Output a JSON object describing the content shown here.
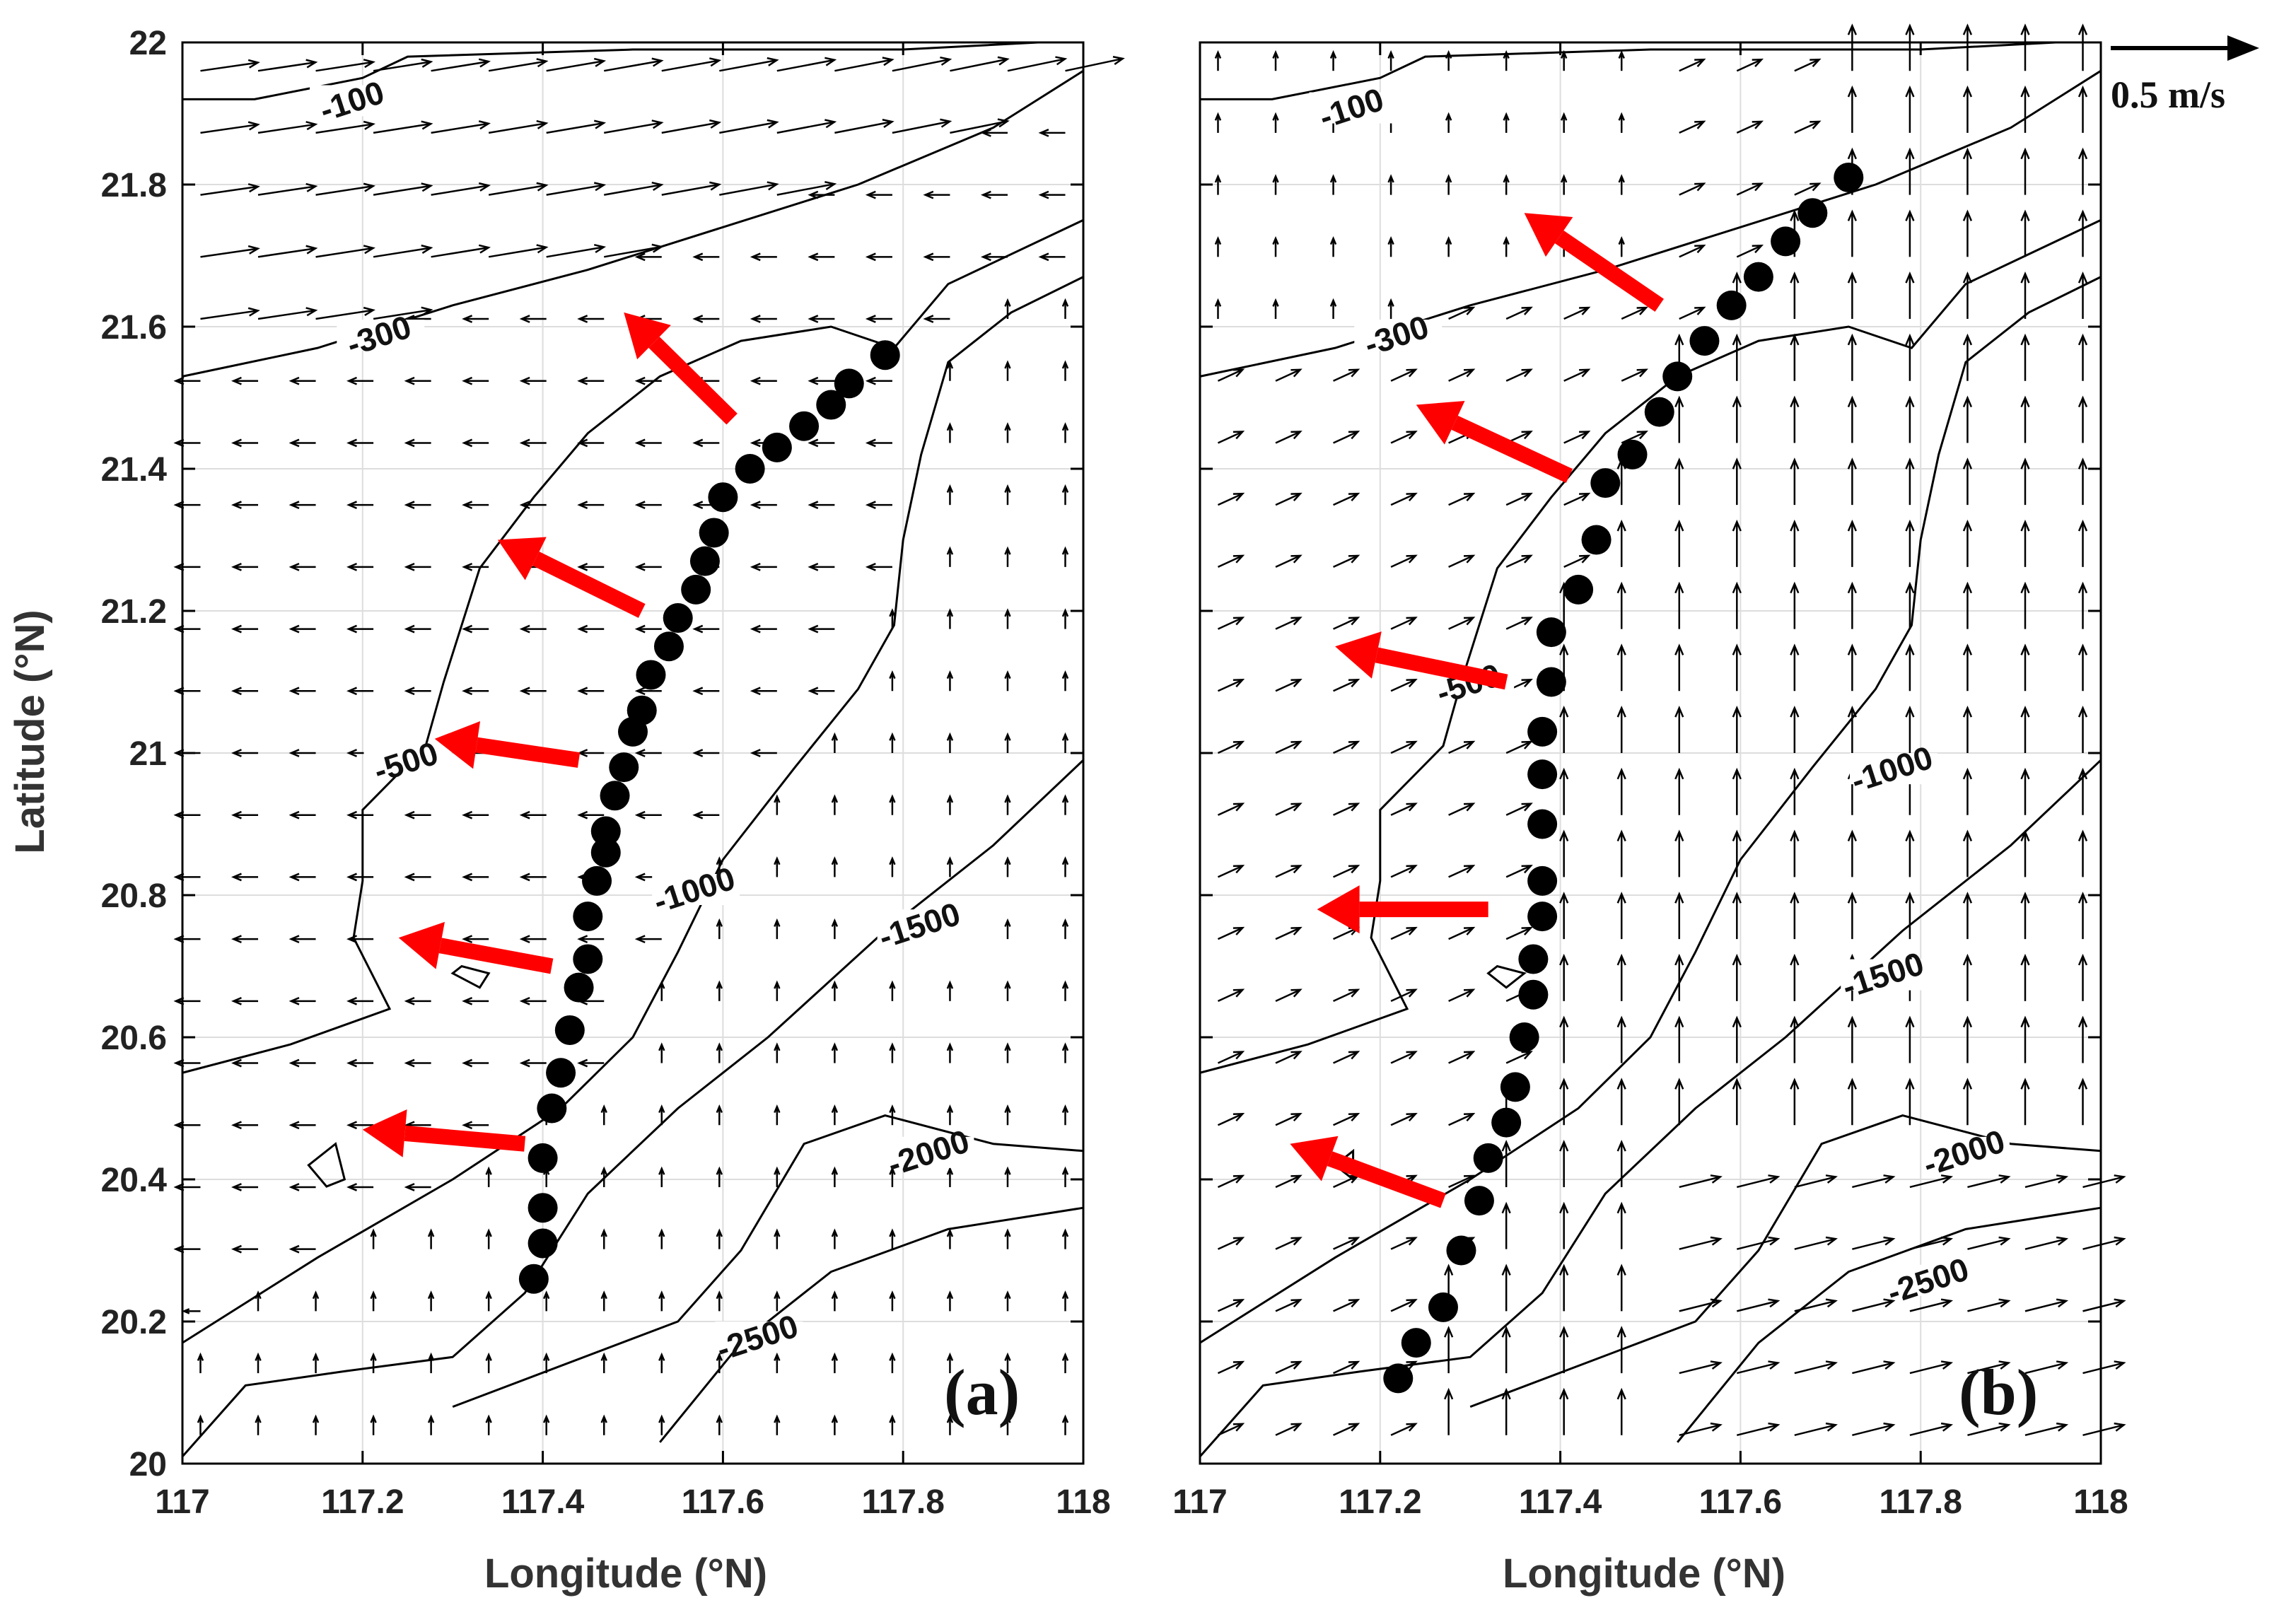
{
  "chart_data": [
    {
      "type": "vector-contour",
      "panel": "(a)",
      "xlabel": "Longitude (°N)",
      "ylabel": "Latitude (°N)",
      "xlim": [
        117,
        118
      ],
      "ylim": [
        20,
        22
      ],
      "xticks": [
        "117",
        "117.2",
        "117.4",
        "117.6",
        "117.8",
        "118"
      ],
      "yticks": [
        "20",
        "20.2",
        "20.4",
        "20.6",
        "20.8",
        "21",
        "21.2",
        "21.4",
        "21.6",
        "21.8",
        "22"
      ],
      "grid": true,
      "contours": [
        {
          "level": "-100",
          "label_pos": [
            117.19,
            21.91
          ],
          "points": [
            [
              117,
              21.92
            ],
            [
              117.08,
              21.92
            ],
            [
              117.2,
              21.95
            ],
            [
              117.25,
              21.98
            ],
            [
              117.5,
              21.99
            ],
            [
              117.8,
              21.99
            ],
            [
              117.95,
              22
            ]
          ]
        },
        {
          "level": "-300",
          "label_pos": [
            117.22,
            21.58
          ],
          "points": [
            [
              117,
              21.53
            ],
            [
              117.15,
              21.57
            ],
            [
              117.3,
              21.63
            ],
            [
              117.45,
              21.68
            ],
            [
              117.6,
              21.74
            ],
            [
              117.75,
              21.8
            ],
            [
              117.9,
              21.88
            ],
            [
              118,
              21.96
            ]
          ]
        },
        {
          "level": "-500",
          "label_pos": [
            117.25,
            20.98
          ],
          "points": [
            [
              117,
              20.55
            ],
            [
              117.12,
              20.59
            ],
            [
              117.23,
              20.64
            ],
            [
              117.19,
              20.74
            ],
            [
              117.2,
              20.82
            ],
            [
              117.2,
              20.92
            ],
            [
              117.27,
              21.01
            ],
            [
              117.29,
              21.1
            ],
            [
              117.33,
              21.26
            ],
            [
              117.39,
              21.36
            ],
            [
              117.45,
              21.45
            ],
            [
              117.53,
              21.53
            ],
            [
              117.62,
              21.58
            ],
            [
              117.72,
              21.6
            ],
            [
              117.79,
              21.57
            ],
            [
              117.85,
              21.66
            ],
            [
              118,
              21.75
            ]
          ]
        },
        {
          "level": "-1000",
          "label_pos": [
            117.57,
            20.8
          ],
          "points": [
            [
              117,
              20.17
            ],
            [
              117.15,
              20.29
            ],
            [
              117.3,
              20.4
            ],
            [
              117.42,
              20.5
            ],
            [
              117.5,
              20.6
            ],
            [
              117.55,
              20.72
            ],
            [
              117.6,
              20.85
            ],
            [
              117.68,
              20.98
            ],
            [
              117.75,
              21.09
            ],
            [
              117.79,
              21.18
            ],
            [
              117.8,
              21.3
            ],
            [
              117.82,
              21.42
            ],
            [
              117.85,
              21.55
            ],
            [
              117.92,
              21.62
            ],
            [
              118,
              21.67
            ]
          ]
        },
        {
          "level": "-1500",
          "label_pos": [
            117.82,
            20.75
          ],
          "points": [
            [
              117,
              20.01
            ],
            [
              117.07,
              20.11
            ],
            [
              117.18,
              20.13
            ],
            [
              117.3,
              20.15
            ],
            [
              117.38,
              20.24
            ],
            [
              117.45,
              20.38
            ],
            [
              117.55,
              20.5
            ],
            [
              117.65,
              20.6
            ],
            [
              117.78,
              20.75
            ],
            [
              117.9,
              20.87
            ],
            [
              118,
              20.99
            ]
          ]
        },
        {
          "level": "-2000",
          "label_pos": [
            117.83,
            20.43
          ],
          "points": [
            [
              117.3,
              20.08
            ],
            [
              117.55,
              20.2
            ],
            [
              117.62,
              20.3
            ],
            [
              117.69,
              20.45
            ],
            [
              117.78,
              20.49
            ],
            [
              117.9,
              20.45
            ],
            [
              118,
              20.44
            ]
          ]
        },
        {
          "level": "-2500",
          "label_pos": [
            117.64,
            20.17
          ],
          "points": [
            [
              117.53,
              20.03
            ],
            [
              117.62,
              20.17
            ],
            [
              117.72,
              20.27
            ],
            [
              117.85,
              20.33
            ],
            [
              118,
              20.36
            ]
          ]
        }
      ],
      "stations": [
        [
          117.39,
          20.26
        ],
        [
          117.4,
          20.31
        ],
        [
          117.4,
          20.36
        ],
        [
          117.4,
          20.43
        ],
        [
          117.41,
          20.5
        ],
        [
          117.42,
          20.55
        ],
        [
          117.43,
          20.61
        ],
        [
          117.44,
          20.67
        ],
        [
          117.45,
          20.71
        ],
        [
          117.45,
          20.77
        ],
        [
          117.46,
          20.82
        ],
        [
          117.47,
          20.86
        ],
        [
          117.47,
          20.89
        ],
        [
          117.48,
          20.94
        ],
        [
          117.49,
          20.98
        ],
        [
          117.5,
          21.03
        ],
        [
          117.51,
          21.06
        ],
        [
          117.52,
          21.11
        ],
        [
          117.54,
          21.15
        ],
        [
          117.55,
          21.19
        ],
        [
          117.57,
          21.23
        ],
        [
          117.58,
          21.27
        ],
        [
          117.59,
          21.31
        ],
        [
          117.6,
          21.36
        ],
        [
          117.63,
          21.4
        ],
        [
          117.66,
          21.43
        ],
        [
          117.69,
          21.46
        ],
        [
          117.72,
          21.49
        ],
        [
          117.74,
          21.52
        ],
        [
          117.78,
          21.56
        ]
      ],
      "red_arrows": [
        {
          "from": [
            117.61,
            21.47
          ],
          "to": [
            117.49,
            21.62
          ]
        },
        {
          "from": [
            117.51,
            21.2
          ],
          "to": [
            117.35,
            21.3
          ]
        },
        {
          "from": [
            117.44,
            20.99
          ],
          "to": [
            117.28,
            21.02
          ]
        },
        {
          "from": [
            117.41,
            20.7
          ],
          "to": [
            117.24,
            20.74
          ]
        },
        {
          "from": [
            117.38,
            20.45
          ],
          "to": [
            117.2,
            20.47
          ]
        }
      ],
      "vectors": [
        {
          "region": "north of -300 isobath",
          "u": 0.3,
          "v": 0.06
        },
        {
          "region": "south of -300, west of -1000",
          "u": -0.12,
          "v": 0.0
        },
        {
          "region": "east of -1000 isobath",
          "u": 0.0,
          "v": 0.1
        }
      ]
    },
    {
      "type": "vector-contour",
      "panel": "(b)",
      "xlabel": "Longitude (°N)",
      "ylabel": "",
      "xlim": [
        117,
        118
      ],
      "ylim": [
        20,
        22
      ],
      "xticks": [
        "117",
        "117.2",
        "117.4",
        "117.6",
        "117.8",
        "118"
      ],
      "yticks": [],
      "grid": true,
      "contours": [
        {
          "level": "-100",
          "label_pos": [
            117.17,
            21.9
          ],
          "points": [
            [
              117,
              21.92
            ],
            [
              117.08,
              21.92
            ],
            [
              117.2,
              21.95
            ],
            [
              117.25,
              21.98
            ],
            [
              117.5,
              21.99
            ],
            [
              117.8,
              21.99
            ],
            [
              117.95,
              22
            ]
          ]
        },
        {
          "level": "-300",
          "label_pos": [
            117.22,
            21.58
          ],
          "points": [
            [
              117,
              21.53
            ],
            [
              117.15,
              21.57
            ],
            [
              117.3,
              21.63
            ],
            [
              117.45,
              21.68
            ],
            [
              117.6,
              21.74
            ],
            [
              117.75,
              21.8
            ],
            [
              117.9,
              21.88
            ],
            [
              118,
              21.96
            ]
          ]
        },
        {
          "level": "-500",
          "label_pos": [
            117.3,
            21.09
          ],
          "points": [
            [
              117,
              20.55
            ],
            [
              117.12,
              20.59
            ],
            [
              117.23,
              20.64
            ],
            [
              117.19,
              20.74
            ],
            [
              117.2,
              20.82
            ],
            [
              117.2,
              20.92
            ],
            [
              117.27,
              21.01
            ],
            [
              117.29,
              21.1
            ],
            [
              117.33,
              21.26
            ],
            [
              117.39,
              21.36
            ],
            [
              117.45,
              21.45
            ],
            [
              117.53,
              21.53
            ],
            [
              117.62,
              21.58
            ],
            [
              117.72,
              21.6
            ],
            [
              117.79,
              21.57
            ],
            [
              117.85,
              21.66
            ],
            [
              118,
              21.75
            ]
          ]
        },
        {
          "level": "-1000",
          "label_pos": [
            117.77,
            20.97
          ],
          "points": [
            [
              117,
              20.17
            ],
            [
              117.15,
              20.29
            ],
            [
              117.3,
              20.4
            ],
            [
              117.42,
              20.5
            ],
            [
              117.5,
              20.6
            ],
            [
              117.55,
              20.72
            ],
            [
              117.6,
              20.85
            ],
            [
              117.68,
              20.98
            ],
            [
              117.75,
              21.09
            ],
            [
              117.79,
              21.18
            ],
            [
              117.8,
              21.3
            ],
            [
              117.82,
              21.42
            ],
            [
              117.85,
              21.55
            ],
            [
              117.92,
              21.62
            ],
            [
              118,
              21.67
            ]
          ]
        },
        {
          "level": "-1500",
          "label_pos": [
            117.76,
            20.68
          ],
          "points": [
            [
              117,
              20.01
            ],
            [
              117.07,
              20.11
            ],
            [
              117.18,
              20.13
            ],
            [
              117.3,
              20.15
            ],
            [
              117.38,
              20.24
            ],
            [
              117.45,
              20.38
            ],
            [
              117.55,
              20.5
            ],
            [
              117.65,
              20.6
            ],
            [
              117.78,
              20.75
            ],
            [
              117.9,
              20.87
            ],
            [
              118,
              20.99
            ]
          ]
        },
        {
          "level": "-2000",
          "label_pos": [
            117.85,
            20.43
          ],
          "points": [
            [
              117.3,
              20.08
            ],
            [
              117.55,
              20.2
            ],
            [
              117.62,
              20.3
            ],
            [
              117.69,
              20.45
            ],
            [
              117.78,
              20.49
            ],
            [
              117.9,
              20.45
            ],
            [
              118,
              20.44
            ]
          ]
        },
        {
          "level": "-2500",
          "label_pos": [
            117.81,
            20.25
          ],
          "points": [
            [
              117.53,
              20.03
            ],
            [
              117.62,
              20.17
            ],
            [
              117.72,
              20.27
            ],
            [
              117.85,
              20.33
            ],
            [
              118,
              20.36
            ]
          ]
        }
      ],
      "stations": [
        [
          117.22,
          20.12
        ],
        [
          117.24,
          20.17
        ],
        [
          117.27,
          20.22
        ],
        [
          117.29,
          20.3
        ],
        [
          117.31,
          20.37
        ],
        [
          117.32,
          20.43
        ],
        [
          117.34,
          20.48
        ],
        [
          117.35,
          20.53
        ],
        [
          117.36,
          20.6
        ],
        [
          117.37,
          20.66
        ],
        [
          117.37,
          20.71
        ],
        [
          117.38,
          20.77
        ],
        [
          117.38,
          20.82
        ],
        [
          117.38,
          20.9
        ],
        [
          117.38,
          20.97
        ],
        [
          117.38,
          21.03
        ],
        [
          117.39,
          21.1
        ],
        [
          117.39,
          21.17
        ],
        [
          117.42,
          21.23
        ],
        [
          117.44,
          21.3
        ],
        [
          117.45,
          21.38
        ],
        [
          117.48,
          21.42
        ],
        [
          117.51,
          21.48
        ],
        [
          117.53,
          21.53
        ],
        [
          117.56,
          21.58
        ],
        [
          117.59,
          21.63
        ],
        [
          117.62,
          21.67
        ],
        [
          117.65,
          21.72
        ],
        [
          117.68,
          21.76
        ],
        [
          117.72,
          21.81
        ]
      ],
      "red_arrows": [
        {
          "from": [
            117.51,
            21.63
          ],
          "to": [
            117.36,
            21.76
          ]
        },
        {
          "from": [
            117.41,
            21.39
          ],
          "to": [
            117.24,
            21.49
          ]
        },
        {
          "from": [
            117.34,
            21.1
          ],
          "to": [
            117.15,
            21.15
          ]
        },
        {
          "from": [
            117.32,
            20.78
          ],
          "to": [
            117.13,
            20.78
          ]
        },
        {
          "from": [
            117.27,
            20.37
          ],
          "to": [
            117.1,
            20.45
          ]
        }
      ],
      "vectors": [
        {
          "region": "north of -300 isobath",
          "u": 0.01,
          "v": 0.1
        },
        {
          "region": "west of stations",
          "u": 0.12,
          "v": 0.06
        },
        {
          "region": "east of stations",
          "u": 0.0,
          "v": 0.22
        },
        {
          "region": "south-east deep",
          "u": 0.2,
          "v": 0.05
        }
      ]
    }
  ],
  "panel_labels": {
    "a": "(a)",
    "b": "(b)"
  },
  "scale_arrow": {
    "label": "0.5 m/s",
    "speed": 0.5
  }
}
